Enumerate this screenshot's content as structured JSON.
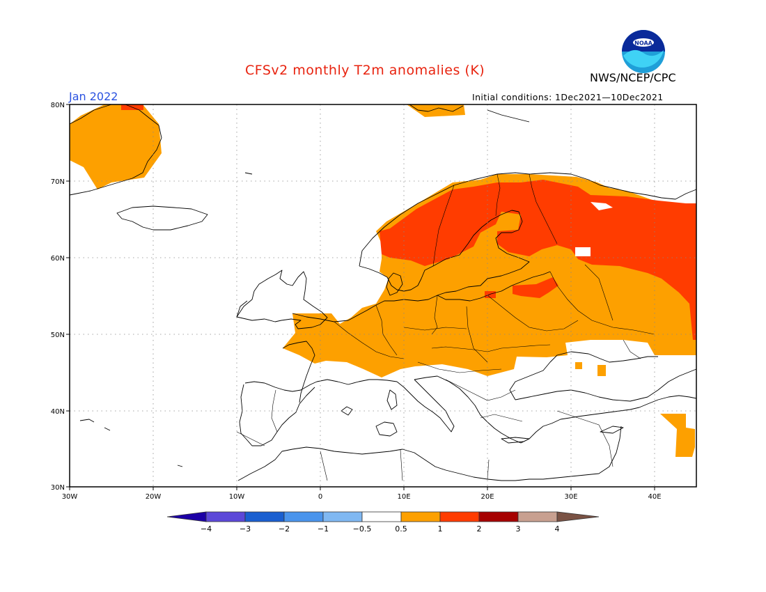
{
  "header": {
    "title": "CFSv2 monthly T2m anomalies (K)",
    "valid_month": "Jan 2022",
    "initial_conditions": "Initial conditions: 1Dec2021—10Dec2021",
    "organization": "NWS/NCEP/CPC",
    "logo_text": "NOAA"
  },
  "colors": {
    "title": "#e8230f",
    "month": "#2a52e0",
    "anom_0_5_to_1": "#fda000",
    "anom_1_to_2": "#ff3c00"
  },
  "map": {
    "lon_range": [
      -30,
      45
    ],
    "lat_range": [
      30,
      80
    ],
    "lon_labels": [
      "30W",
      "20W",
      "10W",
      "0",
      "10E",
      "20E",
      "30E",
      "40E"
    ],
    "lat_labels": [
      "80N",
      "70N",
      "60N",
      "50N",
      "40N",
      "30N"
    ],
    "grid": "dotted"
  },
  "colorbar": {
    "tick_labels": [
      "−4",
      "−3",
      "−2",
      "−1",
      "−0.5",
      "0.5",
      "1",
      "2",
      "3",
      "4"
    ],
    "colors": [
      "#1c00a6",
      "#5c48d8",
      "#1a5fd0",
      "#4a94ec",
      "#80b8f2",
      "#ffffff",
      "#fda000",
      "#ff3c00",
      "#a60000",
      "#c8a090",
      "#7a5244"
    ]
  }
}
